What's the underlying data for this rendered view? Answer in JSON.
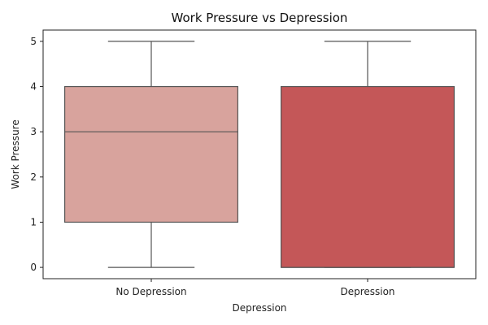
{
  "chart_data": {
    "type": "box",
    "title": "Work Pressure vs Depression",
    "xlabel": "Depression",
    "ylabel": "Work Pressure",
    "categories": [
      "No Depression",
      "Depression"
    ],
    "boxes": [
      {
        "category": "No Depression",
        "min": 0,
        "q1": 1,
        "median": 3,
        "q3": 4,
        "max": 5,
        "color": "#d8a39d"
      },
      {
        "category": "Depression",
        "min": 0,
        "q1": 0,
        "median": 0,
        "q3": 4,
        "max": 5,
        "color": "#c45758"
      }
    ],
    "ylim": [
      -0.25,
      5.25
    ],
    "yticks": [
      "0",
      "1",
      "2",
      "3",
      "4",
      "5"
    ],
    "grid": false,
    "legend": false
  }
}
